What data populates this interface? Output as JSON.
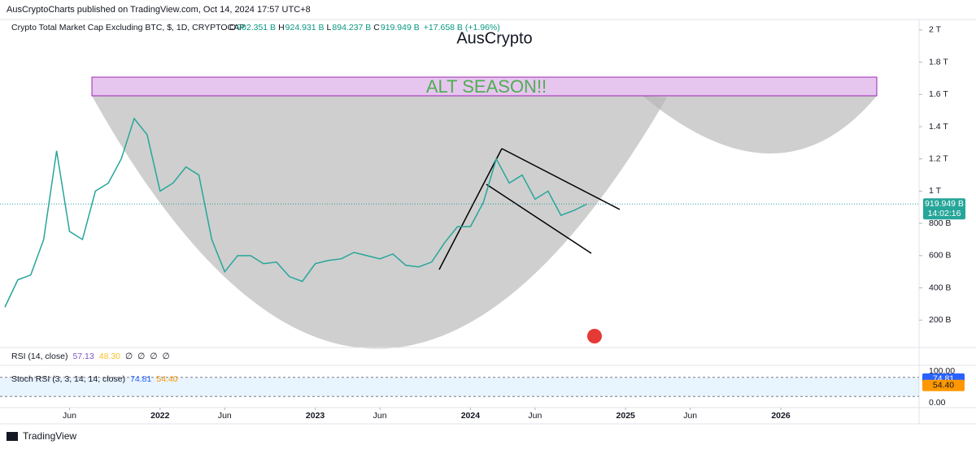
{
  "header": "AusCryptoCharts published on TradingView.com, Oct 14, 2024 17:57 UTC+8",
  "footer": "TradingView",
  "chart_data": {
    "type": "line",
    "title": "Crypto Total Market Cap Excluding BTC, $, 1D, CRYPTOCAP",
    "ohlc_labels": [
      "O",
      "H",
      "L",
      "C"
    ],
    "ohlc_values": [
      "902.351 B",
      "924.931 B",
      "894.237 B",
      "919.949 B"
    ],
    "change": "+17.658 B (+1.96%)",
    "annotations": [
      "AusCrypto",
      "ALT SEASON!!"
    ],
    "color": "#26a69a",
    "x": [
      "2021-01",
      "2021-02",
      "2021-03",
      "2021-04",
      "2021-05",
      "2021-06",
      "2021-07",
      "2021-08",
      "2021-09",
      "2021-10",
      "2021-11",
      "2021-12",
      "2022-01",
      "2022-02",
      "2022-03",
      "2022-04",
      "2022-05",
      "2022-06",
      "2022-07",
      "2022-08",
      "2022-09",
      "2022-10",
      "2022-11",
      "2022-12",
      "2023-01",
      "2023-02",
      "2023-03",
      "2023-04",
      "2023-05",
      "2023-06",
      "2023-07",
      "2023-08",
      "2023-09",
      "2023-10",
      "2023-11",
      "2023-12",
      "2024-01",
      "2024-02",
      "2024-03",
      "2024-04",
      "2024-05",
      "2024-06",
      "2024-07",
      "2024-08",
      "2024-09",
      "2024-10"
    ],
    "values": [
      280,
      450,
      480,
      700,
      1250,
      750,
      700,
      1000,
      1050,
      1200,
      1450,
      1350,
      1000,
      1050,
      1150,
      1100,
      700,
      500,
      600,
      600,
      550,
      560,
      470,
      440,
      550,
      570,
      580,
      620,
      600,
      580,
      610,
      540,
      530,
      560,
      680,
      780,
      780,
      930,
      1200,
      1050,
      1100,
      950,
      1000,
      850,
      880,
      920
    ],
    "xlim": [
      "2021-01",
      "2026-11"
    ],
    "xticks": [
      {
        "value": "2021-06",
        "label": "Jun"
      },
      {
        "value": "2022-01",
        "label": "2022"
      },
      {
        "value": "2022-06",
        "label": "Jun"
      },
      {
        "value": "2023-01",
        "label": "2023"
      },
      {
        "value": "2023-06",
        "label": "Jun"
      },
      {
        "value": "2024-01",
        "label": "2024"
      },
      {
        "value": "2024-06",
        "label": "Jun"
      },
      {
        "value": "2025-01",
        "label": "2025"
      },
      {
        "value": "2025-06",
        "label": "Jun"
      },
      {
        "value": "2026-01",
        "label": "2026"
      }
    ],
    "ylim": [
      20,
      2100
    ],
    "yticks": [
      {
        "value": 200,
        "label": "200 B"
      },
      {
        "value": 400,
        "label": "400 B"
      },
      {
        "value": 600,
        "label": "600 B"
      },
      {
        "value": 800,
        "label": "800 B"
      },
      {
        "value": 1000,
        "label": "1 T"
      },
      {
        "value": 1200,
        "label": "1.2 T"
      },
      {
        "value": 1400,
        "label": "1.4 T"
      },
      {
        "value": 1600,
        "label": "1.6 T"
      },
      {
        "value": 1800,
        "label": "1.8 T"
      },
      {
        "value": 2000,
        "label": "2 T"
      }
    ],
    "last_price": {
      "value": 919.949,
      "label": "919.949 B"
    },
    "countdown": "14:02:16",
    "rsi": {
      "title": "RSI (14, close)",
      "readouts": [
        "57.13",
        "48.30",
        "∅",
        "∅",
        "∅",
        "∅"
      ]
    },
    "stoch": {
      "title": "Stoch RSI (3, 3, 14, 14, close)",
      "ylim": [
        0,
        100
      ],
      "yticks": [
        {
          "value": 100,
          "label": "100.00"
        },
        {
          "value": 0,
          "label": "0.00"
        }
      ],
      "band": [
        20,
        80
      ],
      "k": {
        "value": 74.81,
        "label": "74.81",
        "color": "#2962ff"
      },
      "d": {
        "value": 54.4,
        "label": "54.40",
        "color": "#ff9800"
      }
    }
  }
}
